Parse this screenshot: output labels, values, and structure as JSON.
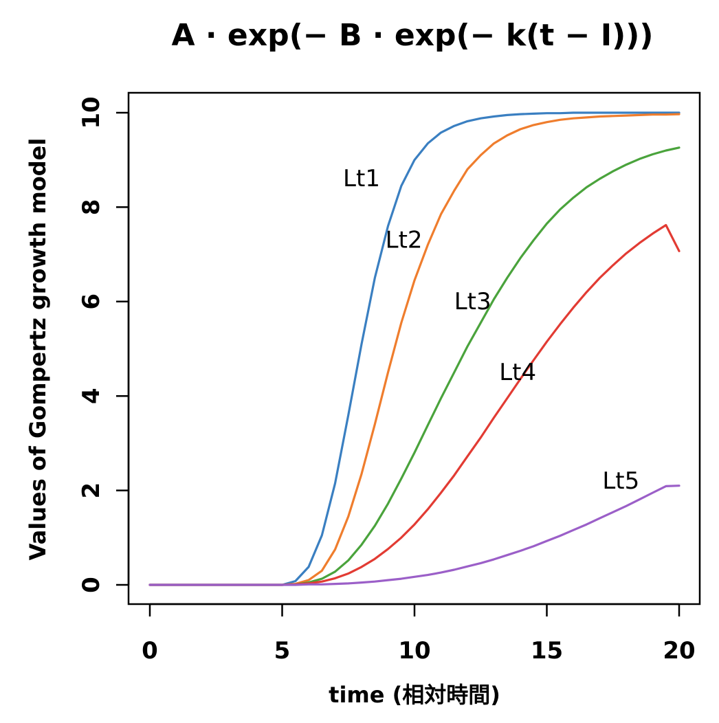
{
  "chart_data": {
    "type": "line",
    "title": "A · exp(− B · exp(− k(t − I)))",
    "xlabel": "time (相対時間)",
    "ylabel": "Values of Gompertz growth model",
    "xlim": [
      0,
      20
    ],
    "ylim": [
      0,
      10
    ],
    "xticks": [
      0,
      5,
      10,
      15,
      20
    ],
    "xtick_labels": [
      "0",
      "5",
      "10",
      "15",
      "20"
    ],
    "yticks": [
      0,
      2,
      4,
      6,
      8,
      10
    ],
    "ytick_labels": [
      "0",
      "2",
      "4",
      "6",
      "8",
      "10"
    ],
    "grid": false,
    "x": [
      0,
      0.5,
      1,
      1.5,
      2,
      2.5,
      3,
      3.5,
      4,
      4.5,
      5,
      5.5,
      6,
      6.5,
      7,
      7.5,
      8,
      8.5,
      9,
      9.5,
      10,
      10.5,
      11,
      11.5,
      12,
      12.5,
      13,
      13.5,
      14,
      14.5,
      15,
      15.5,
      16,
      16.5,
      17,
      17.5,
      18,
      18.5,
      19,
      19.5,
      20
    ],
    "series": [
      {
        "name": "Lt1",
        "label": "Lt1",
        "color": "#3a7fc1",
        "label_at": [
          8.0,
          8.6
        ],
        "values": [
          0,
          0,
          0,
          0,
          0,
          0,
          0,
          0,
          0,
          0,
          0,
          0.08,
          0.38,
          1.05,
          2.15,
          3.6,
          5.1,
          6.5,
          7.6,
          8.45,
          9.0,
          9.35,
          9.58,
          9.72,
          9.82,
          9.88,
          9.92,
          9.95,
          9.97,
          9.98,
          9.99,
          9.99,
          10.0,
          10.0,
          10.0,
          10.0,
          10.0,
          10.0,
          10.0,
          10.0,
          10.0
        ]
      },
      {
        "name": "Lt2",
        "label": "Lt2",
        "color": "#ef7d2d",
        "label_at": [
          9.6,
          7.3
        ],
        "values": [
          0,
          0,
          0,
          0,
          0,
          0,
          0,
          0,
          0,
          0,
          0,
          0.02,
          0.1,
          0.3,
          0.75,
          1.45,
          2.35,
          3.4,
          4.5,
          5.55,
          6.45,
          7.2,
          7.85,
          8.35,
          8.8,
          9.1,
          9.35,
          9.52,
          9.65,
          9.74,
          9.8,
          9.85,
          9.88,
          9.9,
          9.92,
          9.93,
          9.94,
          9.95,
          9.96,
          9.96,
          9.97
        ]
      },
      {
        "name": "Lt3",
        "label": "Lt3",
        "color": "#4aa33c",
        "label_at": [
          12.2,
          6.0
        ],
        "values": [
          0,
          0,
          0,
          0,
          0,
          0,
          0,
          0,
          0,
          0,
          0,
          0.01,
          0.05,
          0.13,
          0.28,
          0.52,
          0.85,
          1.25,
          1.72,
          2.25,
          2.8,
          3.38,
          3.95,
          4.5,
          5.05,
          5.55,
          6.05,
          6.5,
          6.92,
          7.3,
          7.65,
          7.95,
          8.2,
          8.42,
          8.6,
          8.76,
          8.9,
          9.02,
          9.12,
          9.2,
          9.26
        ]
      },
      {
        "name": "Lt4",
        "label": "Lt4",
        "color": "#e23b33",
        "label_at": [
          13.9,
          4.5
        ],
        "values": [
          0,
          0,
          0,
          0,
          0,
          0,
          0,
          0,
          0,
          0,
          0,
          0.01,
          0.03,
          0.07,
          0.14,
          0.24,
          0.38,
          0.55,
          0.76,
          1.0,
          1.28,
          1.6,
          1.95,
          2.32,
          2.72,
          3.12,
          3.54,
          3.95,
          4.36,
          4.76,
          5.15,
          5.52,
          5.87,
          6.2,
          6.5,
          6.77,
          7.02,
          7.24,
          7.44,
          7.62,
          7.07
        ]
      },
      {
        "name": "Lt5",
        "label": "Lt5",
        "color": "#9b5fc8",
        "label_at": [
          17.8,
          2.2
        ],
        "values": [
          0,
          0,
          0,
          0,
          0,
          0,
          0,
          0,
          0,
          0,
          0,
          0.0,
          0.01,
          0.01,
          0.02,
          0.03,
          0.05,
          0.07,
          0.1,
          0.13,
          0.17,
          0.21,
          0.26,
          0.32,
          0.39,
          0.46,
          0.54,
          0.63,
          0.72,
          0.82,
          0.93,
          1.04,
          1.16,
          1.28,
          1.41,
          1.54,
          1.67,
          1.81,
          1.95,
          2.09,
          2.1
        ]
      }
    ]
  }
}
